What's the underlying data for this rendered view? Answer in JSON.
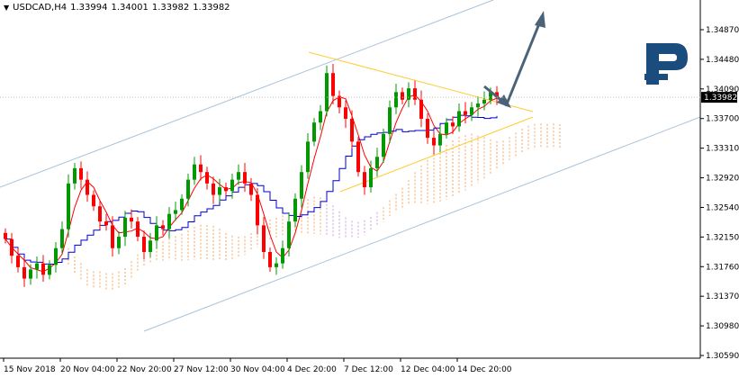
{
  "header": {
    "menu_icon": "triangle-down-icon",
    "symbol": "USDCAD,H4",
    "ohlc": [
      "1.33994",
      "1.34001",
      "1.33982",
      "1.33982"
    ]
  },
  "logo": {
    "name": "brand-r-logo-icon",
    "color": "#1a4c7d"
  },
  "price_axis": {
    "labels": [
      "1.34870",
      "1.34480",
      "1.34090",
      "1.33700",
      "1.33310",
      "1.32920",
      "1.32540",
      "1.32150",
      "1.31760",
      "1.31370",
      "1.30980",
      "1.30590"
    ],
    "current_price": "1.33982",
    "current_price_color": "#000000"
  },
  "time_axis": {
    "labels": [
      "15 Nov 2018",
      "20 Nov 04:00",
      "22 Nov 20:00",
      "27 Nov 12:00",
      "30 Nov 04:00",
      "4 Dec 20:00",
      "7 Dec 12:00",
      "12 Dec 04:00",
      "14 Dec 20:00"
    ]
  },
  "colors": {
    "bull": "#009900",
    "bear": "#ff0000",
    "tenkan": "#ff0000",
    "kijun": "#0000cc",
    "cloud": "#f4a460",
    "cloud_alt": "#c9a0dc",
    "channel": "#a9c4dc",
    "triangle": "#ffcc33",
    "arrow": "#4a6378"
  },
  "chart_data": {
    "type": "candlestick",
    "symbol": "USDCAD",
    "timeframe": "H4",
    "ylim": [
      1.3059,
      1.3487
    ],
    "close_series": [
      1.3212,
      1.319,
      1.3175,
      1.316,
      1.3172,
      1.318,
      1.3165,
      1.3178,
      1.32,
      1.3225,
      1.3285,
      1.3305,
      1.329,
      1.327,
      1.3255,
      1.3235,
      1.323,
      1.32,
      1.3215,
      1.324,
      1.3235,
      1.3215,
      1.3195,
      1.321,
      1.323,
      1.3225,
      1.3245,
      1.325,
      1.3265,
      1.329,
      1.331,
      1.33,
      1.3285,
      1.327,
      1.328,
      1.3275,
      1.329,
      1.33,
      1.3285,
      1.327,
      1.323,
      1.3195,
      1.3175,
      1.318,
      1.32,
      1.3235,
      1.3265,
      1.33,
      1.334,
      1.3365,
      1.338,
      1.343,
      1.34,
      1.3385,
      1.337,
      1.334,
      1.33,
      1.328,
      1.3305,
      1.332,
      1.335,
      1.3385,
      1.3405,
      1.3395,
      1.341,
      1.3395,
      1.337,
      1.3345,
      1.3335,
      1.335,
      1.3365,
      1.336,
      1.338,
      1.3375,
      1.3385,
      1.339,
      1.3395,
      1.3405,
      1.3398
    ],
    "last_close": 1.33982
  }
}
